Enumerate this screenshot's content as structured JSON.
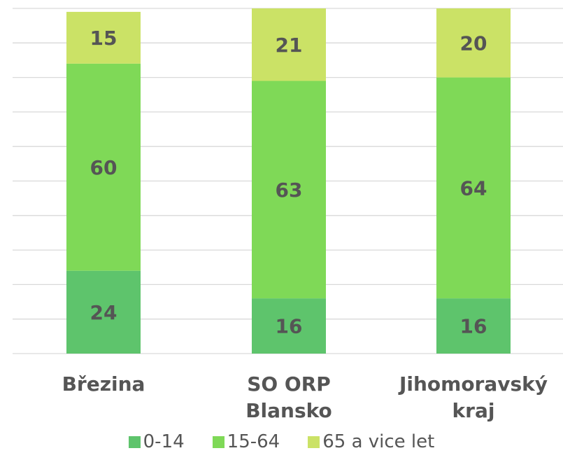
{
  "chart_data": {
    "type": "stacked_bar",
    "categories": [
      "Březina",
      "SO ORP Blansko",
      "Jihomoravský kraj"
    ],
    "series": [
      {
        "name": "0-14",
        "color": "#5ec46c",
        "values": [
          24,
          16,
          16
        ]
      },
      {
        "name": "15-64",
        "color": "#7fd957",
        "values": [
          60,
          63,
          64
        ]
      },
      {
        "name": "65 a vice let",
        "color": "#cbe266",
        "values": [
          15,
          21,
          20
        ]
      }
    ],
    "ylim": [
      0,
      100
    ],
    "yticks": [
      0,
      10,
      20,
      30,
      40,
      50,
      60,
      70,
      80,
      90,
      100
    ],
    "grid": true
  }
}
